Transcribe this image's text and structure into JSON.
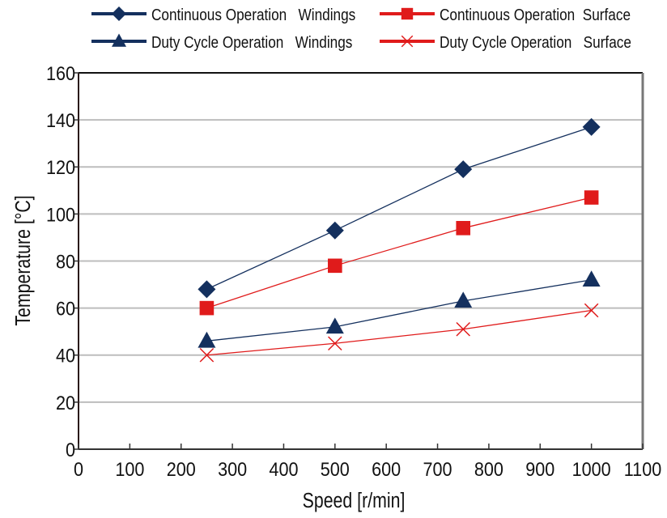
{
  "chart_data": {
    "type": "line",
    "title": "",
    "xlabel": "Speed [r/min]",
    "ylabel": "Temperature [°C]",
    "xlim": [
      0,
      1100
    ],
    "ylim": [
      0,
      160
    ],
    "xticks": [
      0,
      100,
      200,
      300,
      400,
      500,
      600,
      700,
      800,
      900,
      1000,
      1100
    ],
    "yticks": [
      0,
      20,
      40,
      60,
      80,
      100,
      120,
      140,
      160
    ],
    "xtick_labels": [
      "0",
      "100",
      "200",
      "300",
      "400",
      "500",
      "600",
      "700",
      "800",
      "900",
      "1000",
      "1100"
    ],
    "ytick_labels": [
      "0",
      "20",
      "40",
      "60",
      "80",
      "100",
      "120",
      "140",
      "160"
    ],
    "grid": "horizontal",
    "legend_position": "top",
    "x": [
      250,
      500,
      750,
      1000
    ],
    "series": [
      {
        "name": "Continuous Operation   Windings",
        "marker": "diamond",
        "color": "#14305e",
        "values": [
          68,
          93,
          119,
          137
        ]
      },
      {
        "name": "Continuous Operation  Surface",
        "marker": "square",
        "color": "#e01b1b",
        "values": [
          60,
          78,
          94,
          107
        ]
      },
      {
        "name": "Duty Cycle Operation   Windings",
        "marker": "triangle",
        "color": "#14305e",
        "values": [
          46,
          52,
          63,
          72
        ]
      },
      {
        "name": "Duty Cycle Operation   Surface",
        "marker": "x",
        "color": "#e01b1b",
        "values": [
          40,
          45,
          51,
          59
        ]
      }
    ]
  },
  "colors": {
    "navy": "#14305e",
    "red": "#e01b1b",
    "grid": "#bdbdbd",
    "axis": "#333333"
  }
}
